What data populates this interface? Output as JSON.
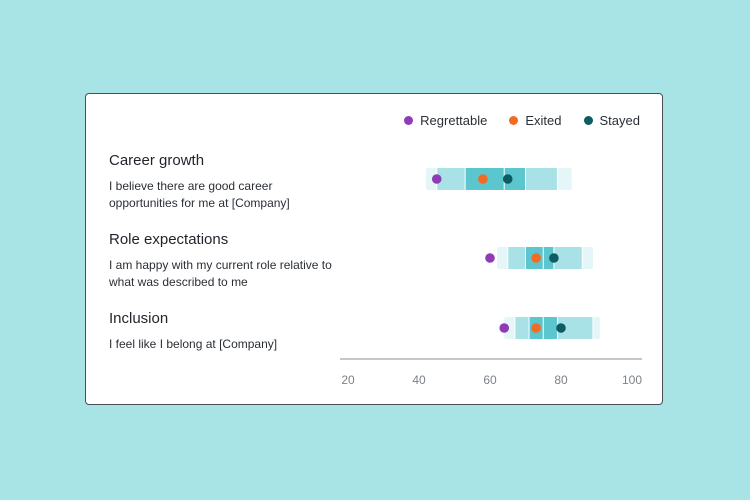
{
  "legend": [
    {
      "label": "Regrettable",
      "color": "#8e3bb5"
    },
    {
      "label": "Exited",
      "color": "#f26b21"
    },
    {
      "label": "Stayed",
      "color": "#0d5c61"
    }
  ],
  "rows": [
    {
      "title": "Career growth",
      "description": "I believe there are good career opportunities for me at [Company]"
    },
    {
      "title": "Role expectations",
      "description": "I am happy with my current role relative to what was described to me"
    },
    {
      "title": "Inclusion",
      "description": "I feel like I belong at [Company]"
    }
  ],
  "chart_data": {
    "type": "scatter",
    "title": "",
    "xlabel": "",
    "ylabel": "",
    "xlim": [
      20,
      100
    ],
    "x_ticks": [
      20,
      40,
      60,
      80,
      100
    ],
    "grid": false,
    "legend_position": "top-right",
    "categories": [
      "Career growth",
      "Role expectations",
      "Inclusion"
    ],
    "bands": [
      {
        "p5": 42,
        "p10": 45,
        "p25": 53,
        "p50": 64,
        "p75": 70,
        "p90": 79,
        "p95": 83
      },
      {
        "p5": 62,
        "p10": 65,
        "p25": 70,
        "p50": 75,
        "p75": 78,
        "p90": 86,
        "p95": 89
      },
      {
        "p5": 64,
        "p10": 67,
        "p25": 71,
        "p50": 75,
        "p75": 79,
        "p90": 89,
        "p95": 91
      }
    ],
    "band_colors": {
      "outer": "#e4f6f7",
      "mid": "#a9e2e6",
      "inner": "#5cc6cf",
      "divider": "#ffffff"
    },
    "series": [
      {
        "name": "Regrettable",
        "color": "#8e3bb5",
        "values": [
          45,
          60,
          64
        ]
      },
      {
        "name": "Exited",
        "color": "#f26b21",
        "values": [
          58,
          73,
          73
        ]
      },
      {
        "name": "Stayed",
        "color": "#0d5c61",
        "values": [
          65,
          78,
          80
        ]
      }
    ]
  }
}
